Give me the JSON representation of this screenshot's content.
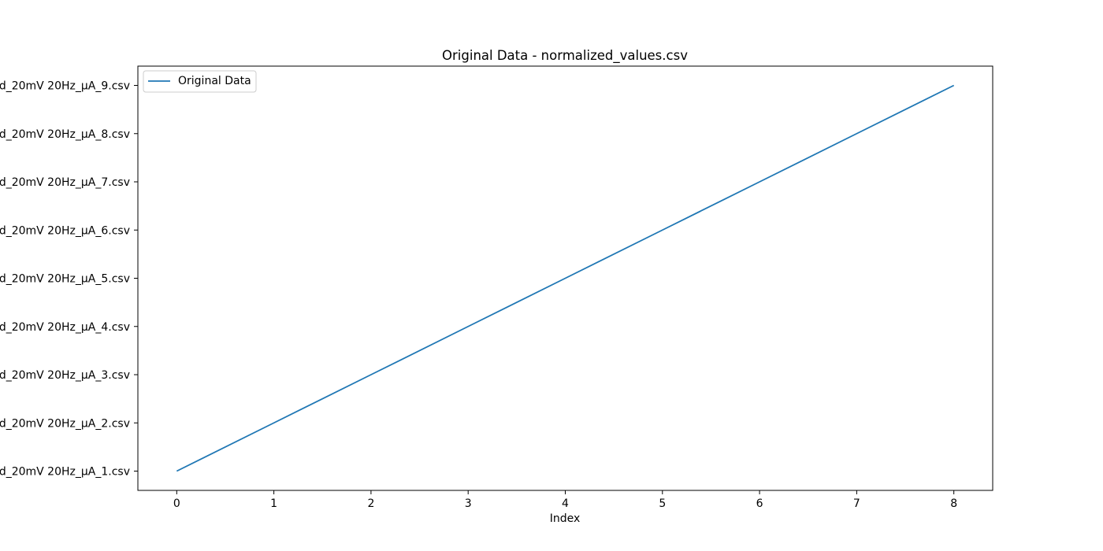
{
  "chart_data": {
    "type": "line",
    "title": "Original Data - normalized_values.csv",
    "xlabel": "Index",
    "ylabel": "",
    "x": [
      0,
      1,
      2,
      3,
      4,
      5,
      6,
      7,
      8
    ],
    "categories_y": [
      "d_20mV 20Hz_µA_1.csv",
      "d_20mV 20Hz_µA_2.csv",
      "d_20mV 20Hz_µA_3.csv",
      "d_20mV 20Hz_µA_4.csv",
      "d_20mV 20Hz_µA_5.csv",
      "d_20mV 20Hz_µA_6.csv",
      "d_20mV 20Hz_µA_7.csv",
      "d_20mV 20Hz_µA_8.csv",
      "d_20mV 20Hz_µA_9.csv"
    ],
    "series": [
      {
        "name": "Original Data",
        "x": [
          0,
          1,
          2,
          3,
          4,
          5,
          6,
          7,
          8
        ],
        "y": [
          "d_20mV 20Hz_µA_1.csv",
          "d_20mV 20Hz_µA_2.csv",
          "d_20mV 20Hz_µA_3.csv",
          "d_20mV 20Hz_µA_4.csv",
          "d_20mV 20Hz_µA_5.csv",
          "d_20mV 20Hz_µA_6.csv",
          "d_20mV 20Hz_µA_7.csv",
          "d_20mV 20Hz_µA_8.csv",
          "d_20mV 20Hz_µA_9.csv"
        ],
        "color": "#1f77b4"
      }
    ],
    "xticks": [
      0,
      1,
      2,
      3,
      4,
      5,
      6,
      7,
      8
    ],
    "xlim": [
      -0.4,
      8.4
    ],
    "grid": false,
    "legend": "top-left"
  }
}
